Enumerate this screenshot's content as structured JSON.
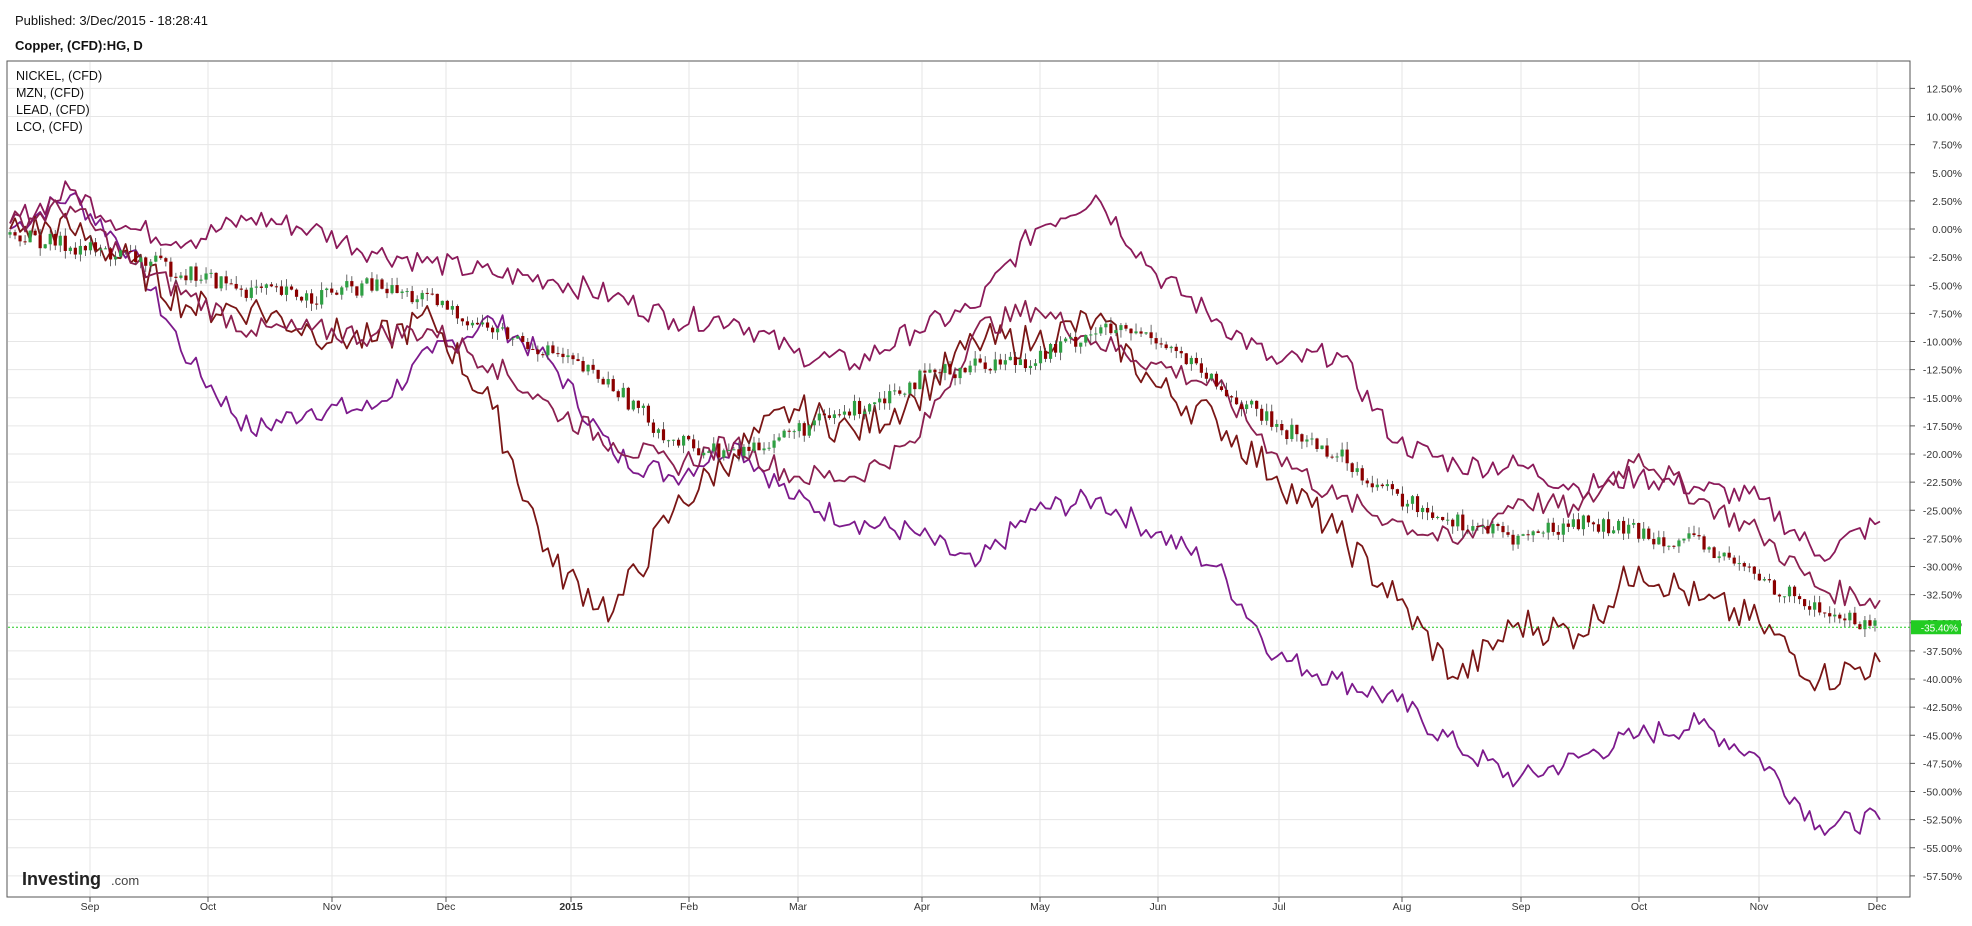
{
  "header": {
    "published": "Published: 3/Dec/2015 - 18:28:41",
    "symbol": "Copper, (CFD):HG, D"
  },
  "legend": [
    "NICKEL,  (CFD)",
    "MZN,  (CFD)",
    "LEAD,  (CFD)",
    "LCO,  (CFD)"
  ],
  "logo": {
    "brand": "Investing",
    "suffix": ".com"
  },
  "colors": {
    "nickel": "#7d1a8c",
    "mzn": "#8b1a5a",
    "lead": "#7a1616",
    "lco": "#8b2050",
    "up": "#2ea043",
    "down": "#8b0000",
    "current_badge": "#22cc22",
    "grid": "#e6e6e6"
  },
  "chart_data": {
    "type": "line",
    "title": "Copper, (CFD):HG, D",
    "ylabel": "",
    "ylim": [
      -58.5,
      15
    ],
    "x_ticks": [
      "Sep",
      "Oct",
      "Nov",
      "Dec",
      "2015",
      "Feb",
      "Mar",
      "Apr",
      "May",
      "Jun",
      "Jul",
      "Aug",
      "Sep",
      "Oct",
      "Nov",
      "Dec"
    ],
    "y_ticks": [
      "12.50%",
      "10.00%",
      "7.50%",
      "5.00%",
      "2.50%",
      "0.00%",
      "-2.50%",
      "-5.00%",
      "-7.50%",
      "-10.00%",
      "-12.50%",
      "-15.00%",
      "-17.50%",
      "-20.00%",
      "-22.50%",
      "-25.00%",
      "-27.50%",
      "-30.00%",
      "-32.50%",
      "-35.00%",
      "-37.50%",
      "-40.00%",
      "-42.50%",
      "-45.00%",
      "-47.50%",
      "-50.00%",
      "-52.50%",
      "-55.00%",
      "-57.50%"
    ],
    "current_value": "-35.40%",
    "current": -35.4,
    "x": [
      "Aug 25",
      "Sep 1",
      "Sep 15",
      "Oct 1",
      "Oct 15",
      "Nov 1",
      "Nov 15",
      "Dec 1",
      "Dec 15",
      "Jan 1",
      "Jan 15",
      "Feb 1",
      "Feb 15",
      "Mar 1",
      "Mar 15",
      "Apr 1",
      "Apr 15",
      "May 1",
      "May 15",
      "Jun 1",
      "Jun 15",
      "Jul 1",
      "Jul 15",
      "Aug 1",
      "Aug 15",
      "Sep 1",
      "Sep 15",
      "Oct 1",
      "Oct 15",
      "Nov 1",
      "Nov 15",
      "Dec 3"
    ],
    "series": [
      {
        "name": "NICKEL,  (CFD)",
        "values": [
          0,
          3,
          -2,
          -12,
          -18,
          -16,
          -16,
          -11,
          -8,
          -12,
          -20,
          -22,
          -19,
          -24,
          -26,
          -27,
          -30,
          -25,
          -24,
          -27,
          -30,
          -38,
          -40,
          -42,
          -46,
          -49,
          -47,
          -45,
          -44,
          -47,
          -53,
          -52.5
        ]
      },
      {
        "name": "MZN,  (CFD)",
        "values": [
          0.5,
          3.5,
          0,
          -1,
          1,
          0,
          -2,
          -3,
          -4,
          -4.5,
          -6,
          -8,
          -8,
          -11,
          -12,
          -9,
          -7,
          0,
          3,
          -4,
          -8,
          -12,
          -11,
          -19,
          -21,
          -21,
          -23,
          -22,
          -23,
          -24,
          -29,
          -26
        ]
      },
      {
        "name": "LEAD,  (CFD)",
        "values": [
          0,
          0,
          -3,
          -7,
          -7,
          -9,
          -10,
          -8,
          -16,
          -30,
          -34,
          -25,
          -20,
          -16,
          -18,
          -15,
          -10,
          -10,
          -8,
          -14,
          -17,
          -22,
          -27,
          -33,
          -40,
          -35,
          -36,
          -30,
          -33,
          -35,
          -40,
          -38.5
        ]
      },
      {
        "name": "LCO,  (CFD)",
        "values": [
          0.5,
          2,
          -3,
          -6,
          -9,
          -9,
          -9.5,
          -9,
          -12,
          -16,
          -19,
          -21,
          -19,
          -22,
          -22,
          -19,
          -9,
          -7,
          -10,
          -12,
          -14,
          -20,
          -24,
          -26,
          -28,
          -24,
          -25,
          -20,
          -24,
          -27,
          -32,
          -33
        ]
      }
    ],
    "candles": {
      "name": "Copper, (CFD):HG, D",
      "values": [
        -0.5,
        -1.5,
        -2.5,
        -4,
        -5.5,
        -6,
        -5,
        -6.5,
        -9,
        -11,
        -14,
        -19,
        -20,
        -18,
        -16,
        -13.5,
        -12,
        -11.5,
        -9,
        -9.5,
        -14,
        -17.5,
        -20,
        -24,
        -26,
        -27.5,
        -26,
        -27,
        -28,
        -31,
        -34,
        -35.4
      ]
    }
  }
}
